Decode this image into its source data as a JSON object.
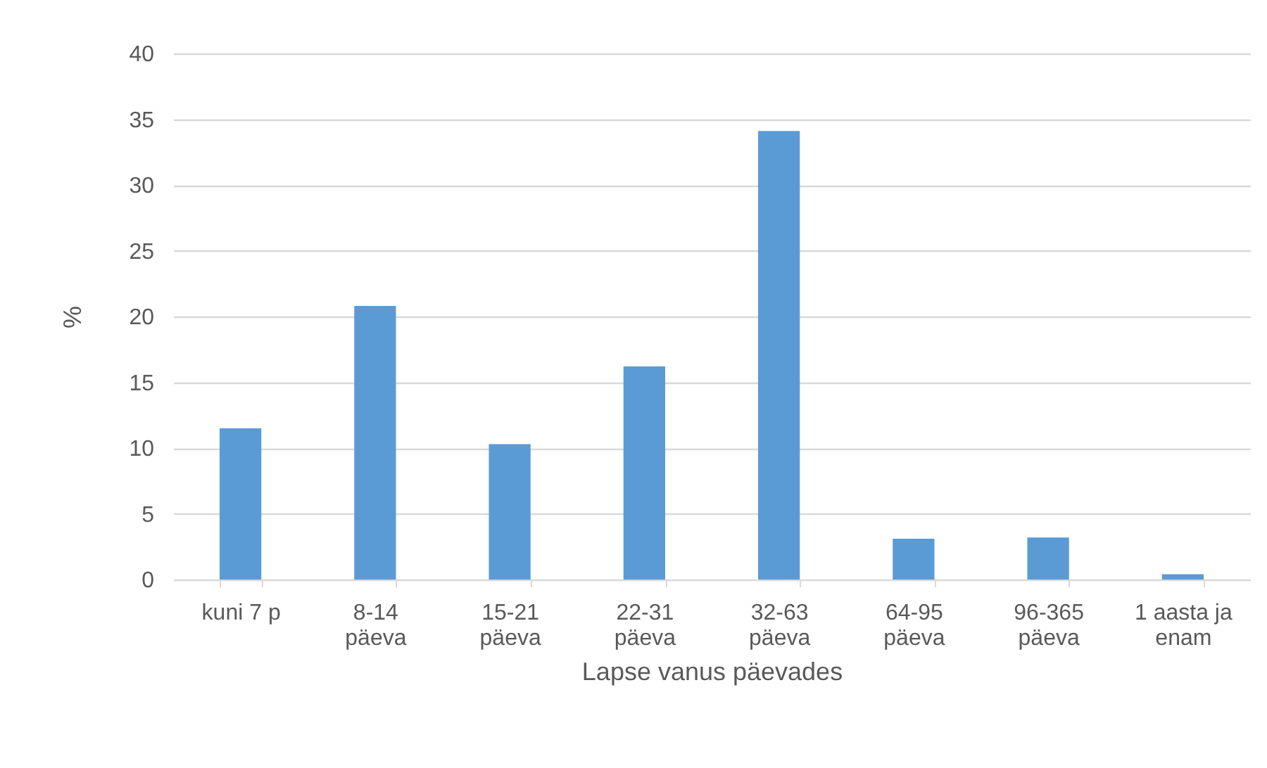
{
  "chart_data": {
    "type": "bar",
    "xlabel": "Lapse vanus päevades",
    "ylabel": "%",
    "categories": [
      "kuni 7 p",
      "8-14 päeva",
      "15-21 päeva",
      "22-31 päeva",
      "32-63 päeva",
      "64-95 päeva",
      "96-365 päeva",
      "1 aasta ja enam"
    ],
    "values": [
      11.5,
      20.8,
      10.3,
      16.2,
      34.1,
      3.1,
      3.2,
      0.4
    ],
    "color": "#5b9bd5",
    "ylim": [
      0,
      40
    ],
    "yticks": [
      0,
      5,
      10,
      15,
      20,
      25,
      30,
      35,
      40
    ],
    "grid": "y"
  }
}
